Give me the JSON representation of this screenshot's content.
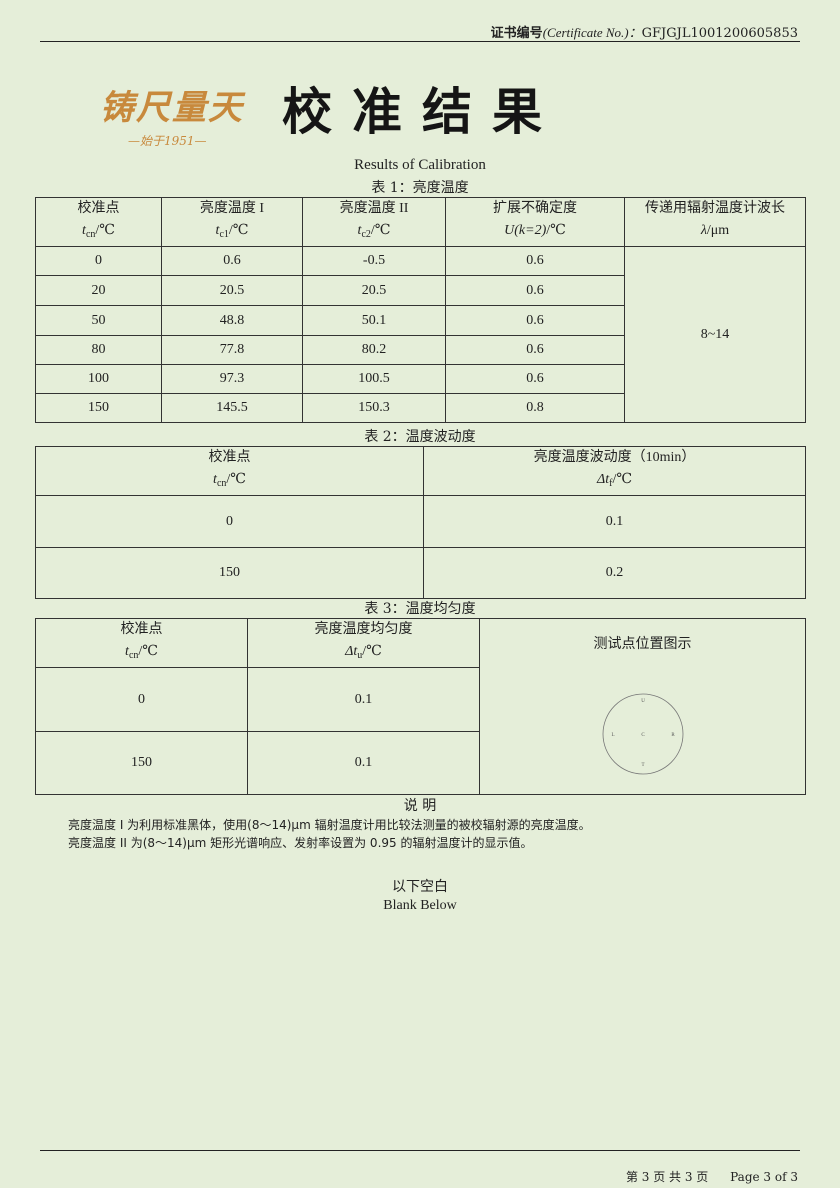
{
  "header": {
    "cert_label": "证书编号",
    "cert_label_en": "(Certificate No.)：",
    "cert_no": "GFJGJL1001200605853"
  },
  "brand": {
    "logo_text": "铸尺量天",
    "since": "—始于1951—",
    "title": "校准结果"
  },
  "subtitle": "Results of Calibration",
  "table1": {
    "caption": "表 1：亮度温度",
    "headers": [
      {
        "label": "校准点",
        "unit_sym": "t",
        "unit_sub": "cn",
        "unit": "/℃"
      },
      {
        "label": "亮度温度 I",
        "unit_sym": "t",
        "unit_sub": "c1",
        "unit": "/℃"
      },
      {
        "label": "亮度温度 II",
        "unit_sym": "t",
        "unit_sub": "c2",
        "unit": "/℃"
      },
      {
        "label": "扩展不确定度",
        "unit_sym": "U(k=2)",
        "unit_sub": "",
        "unit": "/℃"
      },
      {
        "label": "传递用辐射温度计波长",
        "unit_sym": "λ",
        "unit_sub": "",
        "unit": "/μm"
      }
    ],
    "rows": [
      [
        "0",
        "0.6",
        "-0.5",
        "0.6"
      ],
      [
        "20",
        "20.5",
        "20.5",
        "0.6"
      ],
      [
        "50",
        "48.8",
        "50.1",
        "0.6"
      ],
      [
        "80",
        "77.8",
        "80.2",
        "0.6"
      ],
      [
        "100",
        "97.3",
        "100.5",
        "0.6"
      ],
      [
        "150",
        "145.5",
        "150.3",
        "0.8"
      ]
    ],
    "wavelength": "8~14"
  },
  "table2": {
    "caption": "表 2：温度波动度",
    "headers": [
      {
        "label": "校准点",
        "unit_sym": "t",
        "unit_sub": "cn",
        "unit": "/℃"
      },
      {
        "label": "亮度温度波动度（10min）",
        "unit_sym": "Δt",
        "unit_sub": "f",
        "unit": "/℃"
      }
    ],
    "rows": [
      [
        "0",
        "0.1"
      ],
      [
        "150",
        "0.2"
      ]
    ]
  },
  "table3": {
    "caption": "表 3：温度均匀度",
    "headers": [
      {
        "label": "校准点",
        "unit_sym": "t",
        "unit_sub": "cn",
        "unit": "/℃"
      },
      {
        "label": "亮度温度均匀度",
        "unit_sym": "Δt",
        "unit_sub": "u",
        "unit": "/℃"
      },
      {
        "label": "测试点位置图示"
      }
    ],
    "rows": [
      [
        "0",
        "0.1"
      ],
      [
        "150",
        "0.1"
      ]
    ],
    "diagram_points": [
      "U",
      "L",
      "C",
      "R",
      "T"
    ]
  },
  "notes": {
    "title": "说 明",
    "lines": [
      "亮度温度 I 为利用标准黑体，使用(8～14)μm 辐射温度计用比较法测量的被校辐射源的亮度温度。",
      "亮度温度 II 为(8～14)μm 矩形光谱响应、发射率设置为 0.95 的辐射温度计的显示值。"
    ]
  },
  "blank_cn": "以下空白",
  "blank_en": "Blank Below",
  "footer": {
    "page_cn": "第 3 页 共 3 页",
    "page_en": "Page 3 of 3"
  }
}
